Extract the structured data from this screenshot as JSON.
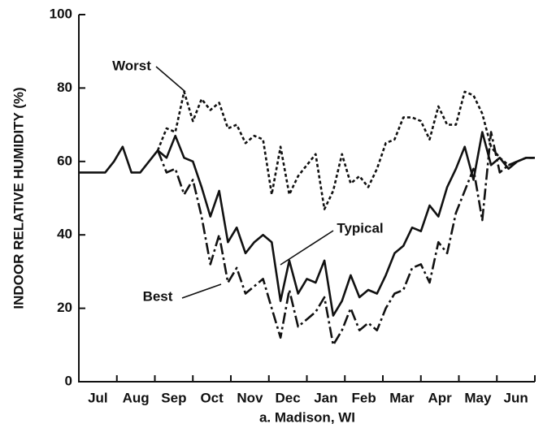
{
  "chart_data": {
    "type": "line",
    "y_label": "INDOOR RELATIVE HUMIDITY (%)",
    "x_label": "a. Madison, WI",
    "categories": [
      "Jul",
      "Aug",
      "Sep",
      "Oct",
      "Nov",
      "Dec",
      "Jan",
      "Feb",
      "Mar",
      "Apr",
      "May",
      "Jun"
    ],
    "x": [
      0,
      1,
      2,
      3,
      4,
      5,
      6,
      7,
      8,
      9,
      10,
      11,
      12,
      13,
      14,
      15,
      16,
      17,
      18,
      19,
      20,
      21,
      22,
      23,
      24,
      25,
      26,
      27,
      28,
      29,
      30,
      31,
      32,
      33,
      34,
      35,
      36,
      37,
      38,
      39,
      40,
      41,
      42,
      43,
      44,
      45,
      46,
      47,
      48,
      49,
      50,
      51,
      52
    ],
    "xlim": [
      0,
      52
    ],
    "ylim": [
      0,
      100
    ],
    "yticks": [
      0,
      20,
      40,
      60,
      80,
      100
    ],
    "series": [
      {
        "name": "Typical",
        "color": "#111111",
        "dash": "solid",
        "values": [
          57,
          57,
          57,
          57,
          60,
          64,
          57,
          57,
          60,
          63,
          61,
          67,
          61,
          60,
          53,
          45,
          52,
          38,
          42,
          35,
          38,
          40,
          38,
          22,
          33,
          24,
          28,
          27,
          33,
          18,
          22,
          29,
          23,
          25,
          24,
          29,
          35,
          37,
          42,
          41,
          48,
          45,
          53,
          58,
          64,
          55,
          68,
          59,
          61,
          58,
          60,
          61,
          61
        ]
      },
      {
        "name": "Best",
        "color": "#111111",
        "dash": "dashdot",
        "values": [
          null,
          null,
          null,
          null,
          null,
          null,
          null,
          null,
          null,
          63,
          57,
          58,
          51,
          55,
          45,
          32,
          40,
          27,
          31,
          24,
          26,
          28,
          20,
          12,
          25,
          15,
          17,
          19,
          23,
          10,
          14,
          20,
          14,
          16,
          14,
          20,
          24,
          25,
          31,
          32,
          27,
          38,
          35,
          46,
          52,
          58,
          44,
          68,
          57,
          59,
          60,
          61,
          61
        ]
      },
      {
        "name": "Worst",
        "color": "#111111",
        "dash": "dotted",
        "values": [
          null,
          null,
          null,
          null,
          null,
          null,
          null,
          null,
          null,
          63,
          69,
          68,
          79,
          71,
          77,
          74,
          76,
          69,
          70,
          65,
          67,
          66,
          51,
          64,
          51,
          56,
          59,
          62,
          47,
          52,
          62,
          54,
          56,
          53,
          58,
          65,
          66,
          72,
          72,
          71,
          66,
          75,
          70,
          70,
          79,
          78,
          73,
          64,
          61,
          59,
          60,
          61,
          61
        ]
      }
    ]
  }
}
